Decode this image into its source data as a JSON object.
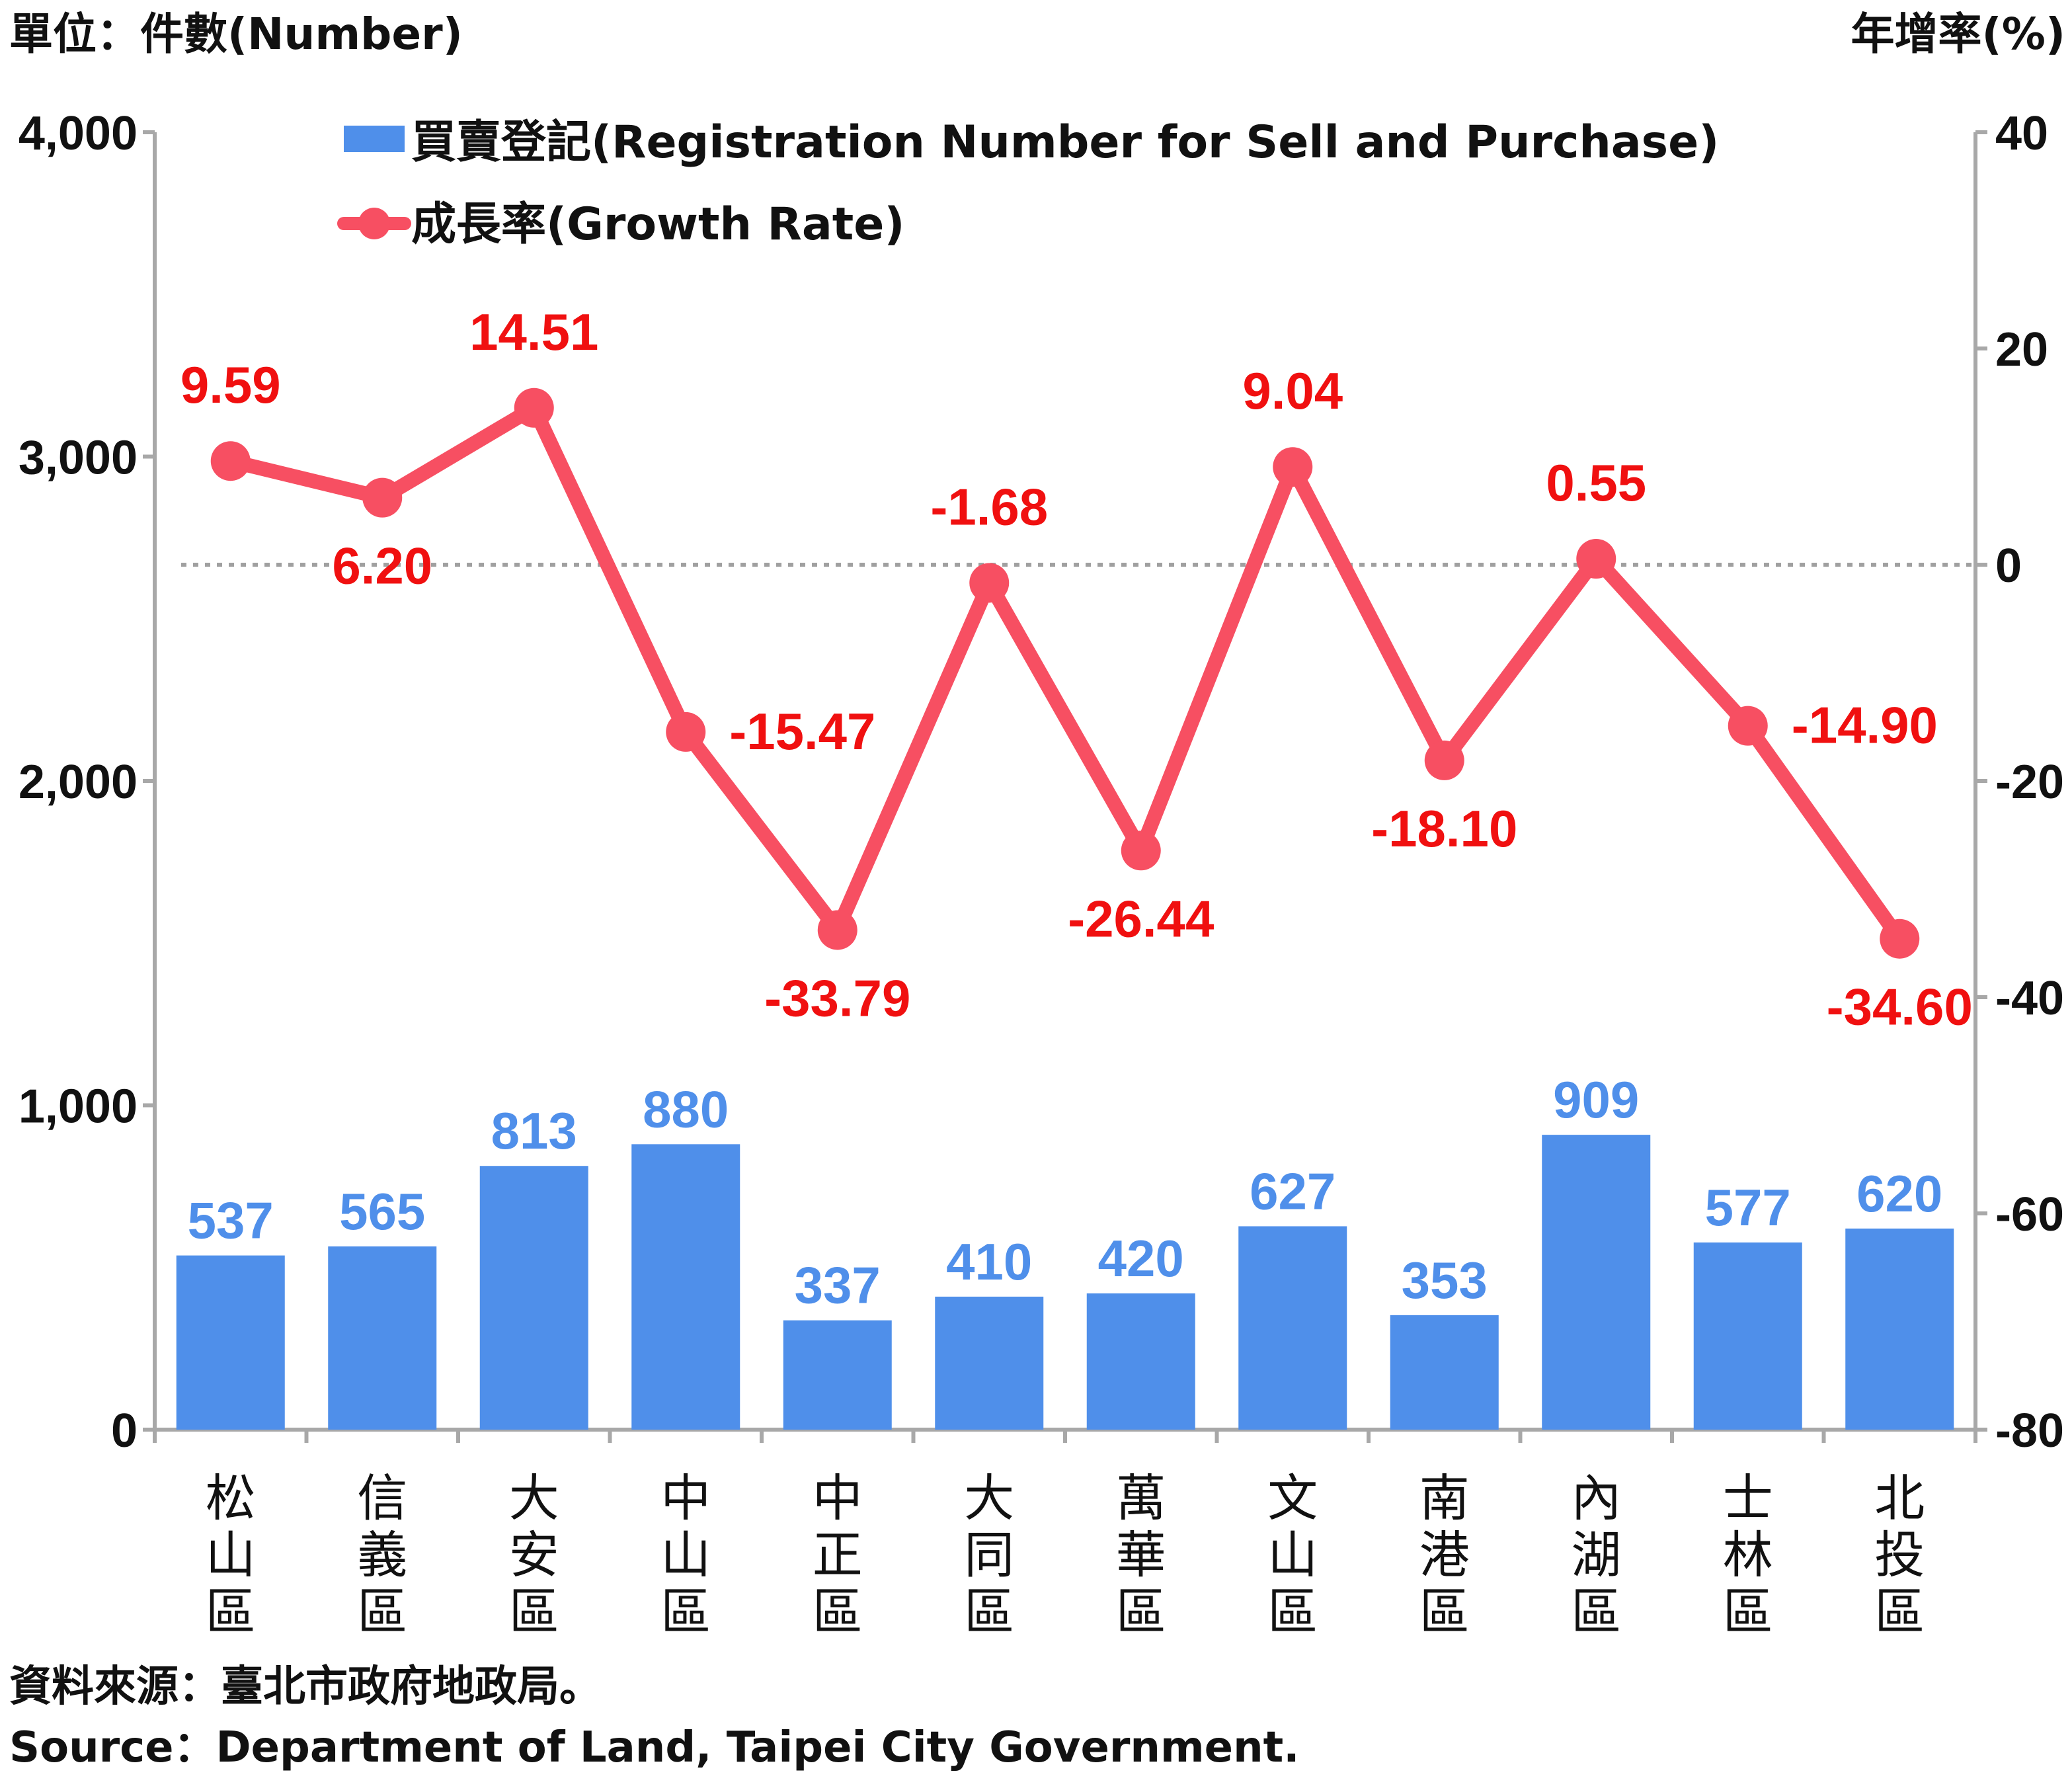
{
  "unit_left": "單位：件數(Number)",
  "unit_right": "年增率(%)",
  "legend": {
    "bar": "買賣登記(Registration Number for Sell and Purchase)",
    "line": "成長率(Growth Rate)"
  },
  "colors": {
    "bar": "#4f8fea",
    "line": "#f74f62",
    "rate_label": "#f01010",
    "bar_label": "#4f8fea",
    "zero_line": "#a0a0a0"
  },
  "chart_data": {
    "type": "bar",
    "categories": [
      "松山區",
      "信義區",
      "大安區",
      "中山區",
      "中正區",
      "大同區",
      "萬華區",
      "文山區",
      "南港區",
      "內湖區",
      "士林區",
      "北投區"
    ],
    "series": [
      {
        "name": "買賣登記(Registration Number for Sell and Purchase)",
        "type": "bar",
        "axis": "left",
        "values": [
          537,
          565,
          813,
          880,
          337,
          410,
          420,
          627,
          353,
          909,
          577,
          620
        ],
        "labels": [
          "537",
          "565",
          "813",
          "880",
          "337",
          "410",
          "420",
          "627",
          "353",
          "909",
          "577",
          "620"
        ]
      },
      {
        "name": "成長率(Growth Rate)",
        "type": "line",
        "axis": "right",
        "values": [
          9.59,
          6.2,
          14.51,
          -15.47,
          -33.79,
          -1.68,
          -26.44,
          9.04,
          -18.1,
          0.55,
          -14.9,
          -34.6
        ],
        "labels": [
          "9.59",
          "6.20",
          "14.51",
          "-15.47",
          "-33.79",
          "-1.68",
          "-26.44",
          "9.04",
          "-18.10",
          "0.55",
          "-14.90",
          "-34.60"
        ]
      }
    ],
    "y_left": {
      "min": 0,
      "max": 4000,
      "ticks": [
        0,
        1000,
        2000,
        3000,
        4000
      ],
      "tick_labels": [
        "0",
        "1,000",
        "2,000",
        "3,000",
        "4,000"
      ]
    },
    "y_right": {
      "min": -80,
      "max": 40,
      "ticks": [
        -80,
        -60,
        -40,
        -20,
        0,
        20,
        40
      ],
      "tick_labels": [
        "-80",
        "-60",
        "-40",
        "-20",
        "0",
        "20",
        "40"
      ]
    },
    "zero_reference_line": "dotted",
    "legend_position": "top-left",
    "grid": false
  },
  "source": {
    "zh": "資料來源：臺北市政府地政局。",
    "en": "Source：Department of Land, Taipei City Government."
  }
}
